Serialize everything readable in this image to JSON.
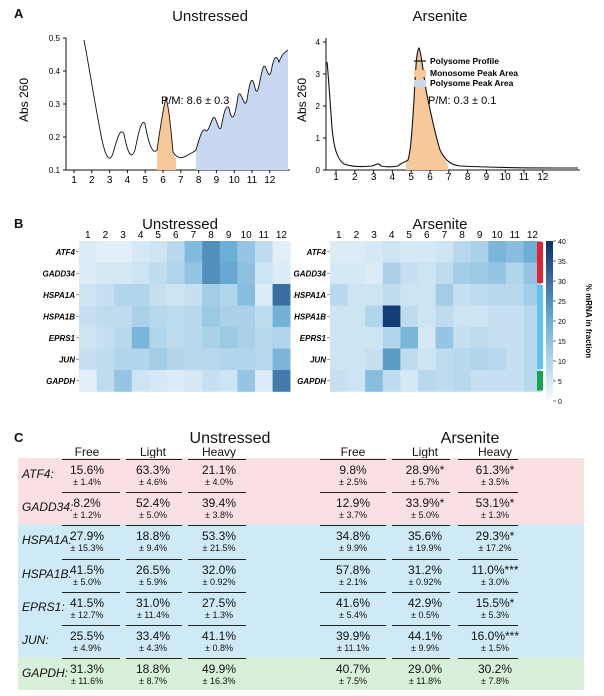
{
  "panel_labels": {
    "a": "A",
    "b": "B",
    "c": "C"
  },
  "panel_a": {
    "left": {
      "title": "Unstressed",
      "ylabel": "Abs 260",
      "yticks": [
        "0.1",
        "0.2",
        "0.3",
        "0.4",
        "0.5"
      ],
      "xticks": [
        "1",
        "2",
        "3",
        "4",
        "5",
        "6",
        "7",
        "8",
        "9",
        "10",
        "11",
        "12"
      ],
      "annotation": "P/M: 8.6 ± 0.3"
    },
    "right": {
      "title": "Arsenite",
      "ylabel": "Abs 260",
      "yticks": [
        "0",
        "1",
        "2",
        "3",
        "4"
      ],
      "xticks": [
        "1",
        "2",
        "3",
        "4",
        "5",
        "6",
        "7",
        "8",
        "9",
        "10",
        "11",
        "12"
      ],
      "annotation": "P/M: 0.3 ± 0.1",
      "legend": [
        "Polysome Profile",
        "Monosome Peak Area",
        "Polysome Peak Area"
      ]
    },
    "colors": {
      "line": "#111111",
      "monosome": "#f7c99a",
      "polysome": "#c9d8f2"
    }
  },
  "chart_data": [
    {
      "type": "heatmap",
      "title": "Unstressed",
      "x": [
        "1",
        "2",
        "3",
        "4",
        "5",
        "6",
        "7",
        "8",
        "9",
        "10",
        "11",
        "12"
      ],
      "rows": [
        "ATF4",
        "GADD34",
        "HSPA1A",
        "HSPA1B",
        "EPRS1",
        "JUN",
        "GAPDH"
      ],
      "values": [
        [
          4,
          3,
          3,
          5,
          6,
          9,
          17,
          25,
          20,
          14,
          8,
          3
        ],
        [
          4,
          5,
          5,
          6,
          8,
          10,
          14,
          25,
          21,
          15,
          6,
          4
        ],
        [
          6,
          7,
          10,
          10,
          7,
          6,
          7,
          12,
          10,
          16,
          4,
          30
        ],
        [
          7,
          8,
          8,
          11,
          9,
          8,
          9,
          13,
          11,
          11,
          8,
          19
        ],
        [
          6,
          7,
          9,
          18,
          10,
          8,
          9,
          11,
          13,
          11,
          9,
          10
        ],
        [
          7,
          8,
          10,
          10,
          12,
          10,
          9,
          9,
          10,
          10,
          9,
          18
        ],
        [
          3,
          8,
          14,
          6,
          5,
          4,
          5,
          7,
          6,
          14,
          4,
          28
        ]
      ],
      "zlim": [
        0,
        40
      ]
    },
    {
      "type": "heatmap",
      "title": "Arsenite",
      "x": [
        "1",
        "2",
        "3",
        "4",
        "5",
        "6",
        "7",
        "8",
        "9",
        "10",
        "11",
        "12"
      ],
      "rows": [
        "ATF4",
        "GADD34",
        "HSPA1A",
        "HSPA1B",
        "EPRS1",
        "JUN",
        "GAPDH"
      ],
      "values": [
        [
          4,
          4,
          5,
          6,
          5,
          5,
          6,
          9,
          11,
          18,
          16,
          20
        ],
        [
          5,
          5,
          4,
          11,
          7,
          6,
          8,
          12,
          13,
          14,
          10,
          14
        ],
        [
          9,
          6,
          6,
          8,
          6,
          6,
          12,
          7,
          8,
          9,
          9,
          12
        ],
        [
          6,
          6,
          10,
          38,
          8,
          6,
          8,
          6,
          6,
          7,
          7,
          9
        ],
        [
          6,
          6,
          6,
          10,
          18,
          5,
          14,
          7,
          8,
          7,
          7,
          9
        ],
        [
          6,
          6,
          7,
          23,
          8,
          6,
          8,
          9,
          10,
          9,
          7,
          9
        ],
        [
          7,
          6,
          16,
          8,
          5,
          9,
          8,
          9,
          7,
          7,
          7,
          9
        ]
      ],
      "zlim": [
        0,
        40
      ]
    }
  ],
  "colorbar": {
    "label": "% mRNA in fraction",
    "ticks": [
      "0",
      "5",
      "10",
      "15",
      "20",
      "25",
      "30",
      "35",
      "40"
    ],
    "groups": [
      {
        "color": "#e8202a",
        "rows": [
          "ATF4",
          "GADD34"
        ]
      },
      {
        "color": "#5bc4ee",
        "rows": [
          "HSPA1A",
          "HSPA1B",
          "EPRS1",
          "JUN"
        ]
      },
      {
        "color": "#15a84a",
        "rows": [
          "GAPDH"
        ]
      }
    ]
  },
  "table": {
    "titles": [
      "Unstressed",
      "Arsenite"
    ],
    "columns": [
      "Free",
      "Light",
      "Heavy"
    ],
    "group_colors": {
      "stress": "#fbe0e3",
      "hsp": "#cdeaf6",
      "gapdh": "#d8efd9"
    },
    "rows": [
      {
        "gene": "ATF4:",
        "group": "stress",
        "cells": [
          {
            "m": "15.6%",
            "s": "± 1.4%"
          },
          {
            "m": "63.3%",
            "s": "± 4.6%"
          },
          {
            "m": "21.1%",
            "s": "± 4.0%"
          },
          {
            "m": "9.8%",
            "s": "± 2.5%"
          },
          {
            "m": "28.9%*",
            "s": "± 5.7%"
          },
          {
            "m": "61.3%*",
            "s": "± 3.5%"
          }
        ]
      },
      {
        "gene": "GADD34:",
        "group": "stress",
        "cells": [
          {
            "m": "8.2%",
            "s": "± 1.2%"
          },
          {
            "m": "52.4%",
            "s": "± 5.0%"
          },
          {
            "m": "39.4%",
            "s": "± 3.8%"
          },
          {
            "m": "12.9%",
            "s": "± 3.7%"
          },
          {
            "m": "33.9%*",
            "s": "± 5.0%"
          },
          {
            "m": "53.1%*",
            "s": "± 1.3%"
          }
        ]
      },
      {
        "gene": "HSPA1A:",
        "group": "hsp",
        "cells": [
          {
            "m": "27.9%",
            "s": "± 15.3%"
          },
          {
            "m": "18.8%",
            "s": "± 9.4%"
          },
          {
            "m": "53.3%",
            "s": "± 21.5%"
          },
          {
            "m": "34.8%",
            "s": "± 9.9%"
          },
          {
            "m": "35.6%",
            "s": "± 19.9%"
          },
          {
            "m": "29.3%*",
            "s": "± 17.2%"
          }
        ]
      },
      {
        "gene": "HSPA1B:",
        "group": "hsp",
        "cells": [
          {
            "m": "41.5%",
            "s": "± 5.0%"
          },
          {
            "m": "26.5%",
            "s": "± 5.9%"
          },
          {
            "m": "32.0%",
            "s": "± 0.92%"
          },
          {
            "m": "57.8%",
            "s": "± 2.1%"
          },
          {
            "m": "31.2%",
            "s": "± 0.92%"
          },
          {
            "m": "11.0%***",
            "s": "± 3.0%"
          }
        ]
      },
      {
        "gene": "EPRS1:",
        "group": "hsp",
        "cells": [
          {
            "m": "41.5%",
            "s": "± 12.7%"
          },
          {
            "m": "31.0%",
            "s": "± 11.4%"
          },
          {
            "m": "27.5%",
            "s": "± 1.3%"
          },
          {
            "m": "41.6%",
            "s": "± 5.4%"
          },
          {
            "m": "42.9%",
            "s": "± 0.5%"
          },
          {
            "m": "15.5%*",
            "s": "± 5.3%"
          }
        ]
      },
      {
        "gene": "JUN:",
        "group": "hsp",
        "cells": [
          {
            "m": "25.5%",
            "s": "± 4.9%"
          },
          {
            "m": "33.4%",
            "s": "± 4.3%"
          },
          {
            "m": "41.1%",
            "s": "± 0.8%"
          },
          {
            "m": "39.9%",
            "s": "± 11.1%"
          },
          {
            "m": "44.1%",
            "s": "± 9.9%"
          },
          {
            "m": "16.0%***",
            "s": "± 1.5%"
          }
        ]
      },
      {
        "gene": "GAPDH:",
        "group": "gapdh",
        "cells": [
          {
            "m": "31.3%",
            "s": "± 11.6%"
          },
          {
            "m": "18.8%",
            "s": "± 8.7%"
          },
          {
            "m": "49.9%",
            "s": "± 16.3%"
          },
          {
            "m": "40.7%",
            "s": "± 7.5%"
          },
          {
            "m": "29.0%",
            "s": "± 11.8%"
          },
          {
            "m": "30.2%",
            "s": "± 7.8%"
          }
        ]
      }
    ]
  }
}
